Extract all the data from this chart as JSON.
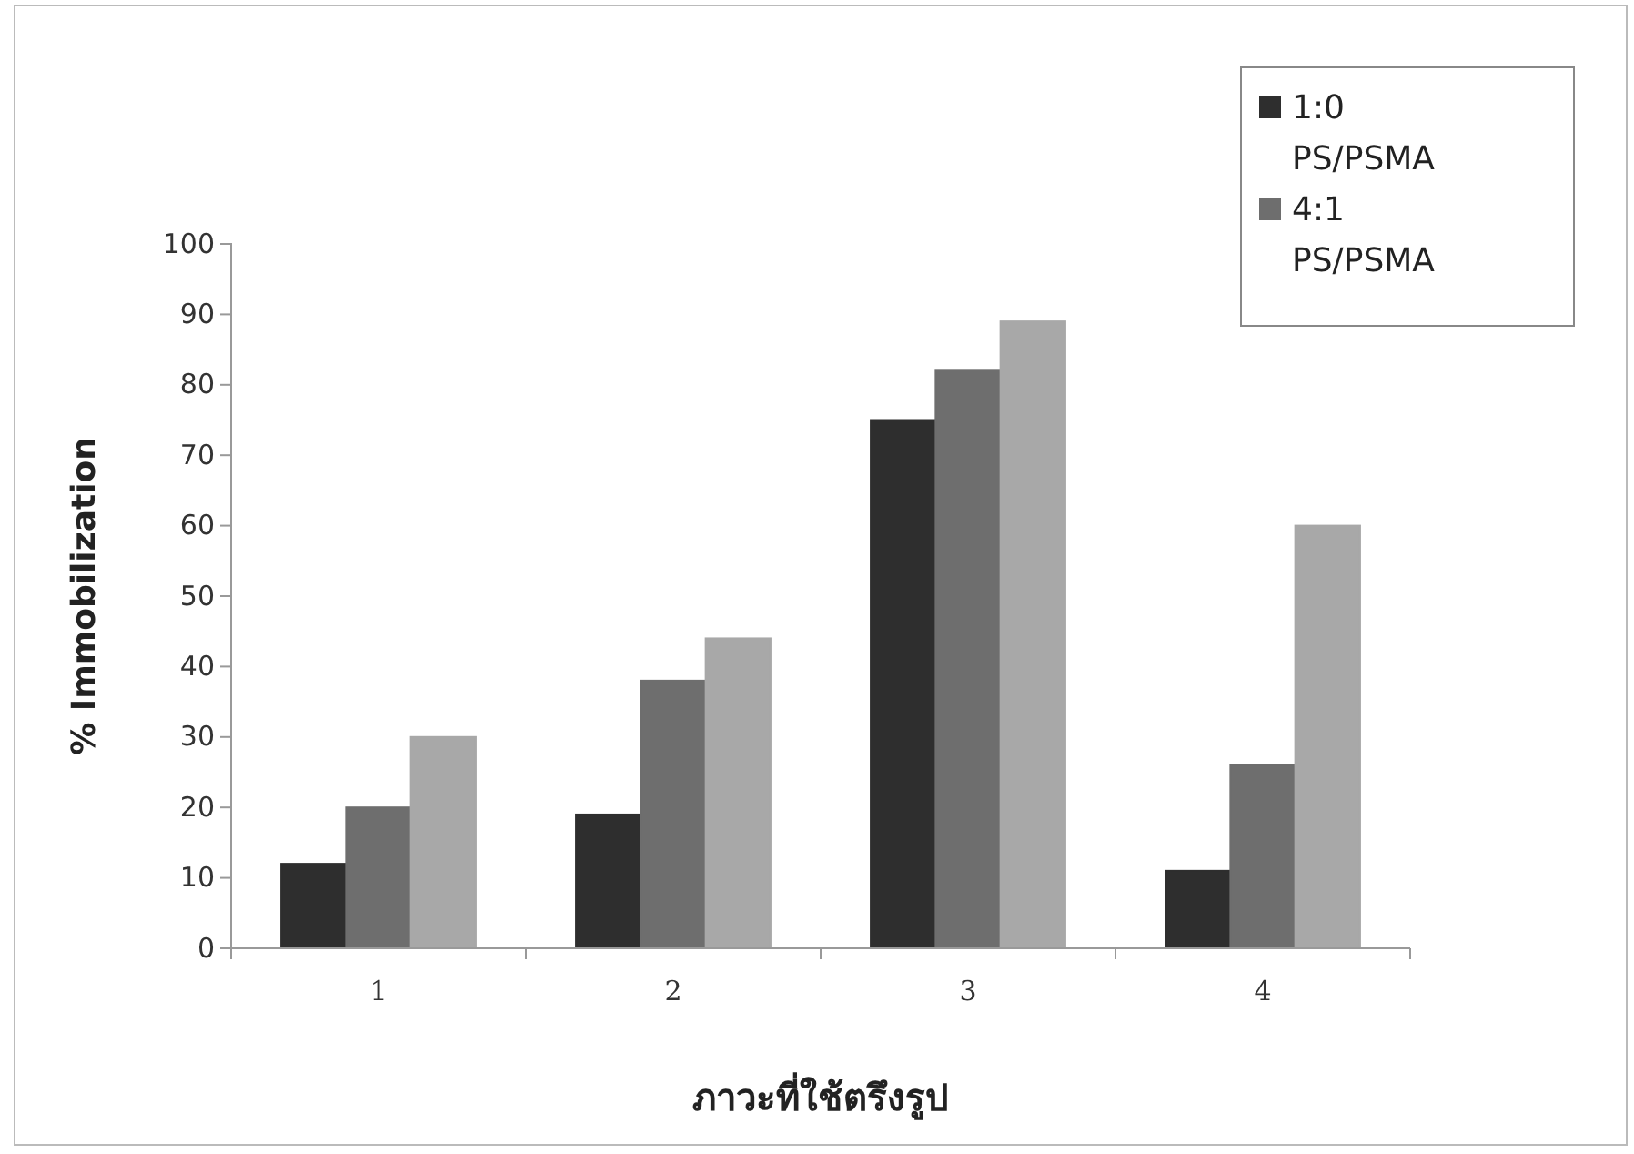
{
  "chart_data": {
    "type": "bar",
    "xlabel": "ภาวะที่ใช้ตรึงรูป",
    "ylabel": "% Immobilization",
    "categories": [
      "1",
      "2",
      "3",
      "4"
    ],
    "series": [
      {
        "name": "1:0 PS/PSMA",
        "color": "#2e2e2e",
        "values": [
          12,
          19,
          75,
          11
        ]
      },
      {
        "name": "4:1 PS/PSMA",
        "color": "#6e6e6e",
        "values": [
          20,
          38,
          82,
          26
        ]
      },
      {
        "color": "#a8a8a8",
        "values": [
          30,
          44,
          89,
          60
        ]
      }
    ],
    "ylim": [
      0,
      100
    ],
    "yticks": [
      0,
      10,
      20,
      30,
      40,
      50,
      60,
      70,
      80,
      90,
      100
    ],
    "grid": false,
    "legend": "top right"
  }
}
